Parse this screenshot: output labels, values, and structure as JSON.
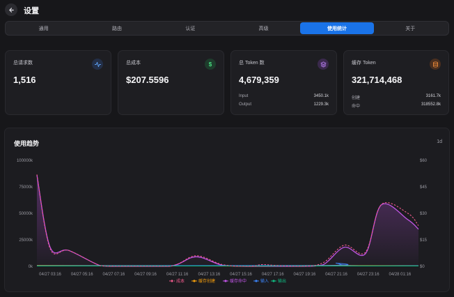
{
  "header": {
    "title": "设置"
  },
  "tabs": [
    {
      "label": "通用",
      "active": false
    },
    {
      "label": "路由",
      "active": false
    },
    {
      "label": "认证",
      "active": false
    },
    {
      "label": "高级",
      "active": false
    },
    {
      "label": "使用统计",
      "active": true
    },
    {
      "label": "关于",
      "active": false
    }
  ],
  "cards": {
    "requests": {
      "label": "总请求数",
      "value": "1,516",
      "icon": "activity-icon",
      "color": "#3b82f6"
    },
    "cost": {
      "label": "总成本",
      "value": "$207.5596",
      "icon": "dollar-icon",
      "color": "#22c55e"
    },
    "tokens": {
      "label": "总 Token 数",
      "value": "4,679,359",
      "icon": "layers-icon",
      "color": "#a855f7",
      "details": [
        {
          "label": "Input",
          "value": "3450.1k"
        },
        {
          "label": "Output",
          "value": "1229.3k"
        }
      ]
    },
    "cache": {
      "label": "缓存 Token",
      "value": "321,714,468",
      "icon": "database-icon",
      "color": "#f97316",
      "details": [
        {
          "label": "创建",
          "value": "3161.7k"
        },
        {
          "label": "命中",
          "value": "318552.8k"
        }
      ]
    }
  },
  "trend": {
    "title": "使用趋势",
    "range": "1d"
  },
  "chart_data": {
    "type": "line",
    "x": [
      "04/27 03:16",
      "04/27 05:16",
      "04/27 07:16",
      "04/27 09:16",
      "04/27 11:16",
      "04/27 13:16",
      "04/27 15:16",
      "04/27 17:16",
      "04/27 19:16",
      "04/27 21:16",
      "04/27 23:16",
      "04/28 01:16"
    ],
    "left_axis": {
      "ticks": [
        "0k",
        "25000k",
        "50000k",
        "75000k",
        "100000k"
      ],
      "ylim": [
        0,
        100000
      ]
    },
    "right_axis": {
      "ticks": [
        "$0",
        "$15",
        "$30",
        "$45",
        "$60"
      ],
      "ylim": [
        0,
        60
      ]
    },
    "grid": false,
    "legend_position": "bottom",
    "series": [
      {
        "name": "成本",
        "axis": "right",
        "color": "#f05a8c",
        "style": "dashed",
        "values": [
          [
            0,
            52
          ],
          [
            0.5,
            10
          ],
          [
            1.2,
            9
          ],
          [
            2.4,
            0.3
          ],
          [
            3,
            0
          ],
          [
            5,
            0
          ],
          [
            6,
            6
          ],
          [
            7,
            1
          ],
          [
            8,
            0
          ],
          [
            8.5,
            1
          ],
          [
            9,
            0.5
          ],
          [
            10,
            0
          ],
          [
            10.8,
            2
          ],
          [
            11.6,
            12
          ],
          [
            12.4,
            8
          ],
          [
            13,
            35
          ],
          [
            14,
            30
          ],
          [
            14.4,
            23
          ]
        ]
      },
      {
        "name": "缓存创建",
        "axis": "left",
        "color": "#f59e0b",
        "style": "solid",
        "values": [
          [
            0,
            600
          ],
          [
            3,
            400
          ],
          [
            6,
            300
          ],
          [
            9,
            300
          ],
          [
            12,
            500
          ],
          [
            14.4,
            400
          ]
        ]
      },
      {
        "name": "缓存命中",
        "axis": "left",
        "color": "#c055e6",
        "style": "solid",
        "values": [
          [
            0,
            86000
          ],
          [
            0.5,
            18000
          ],
          [
            1.2,
            15000
          ],
          [
            2.4,
            500
          ],
          [
            3,
            0
          ],
          [
            5,
            0
          ],
          [
            6,
            9000
          ],
          [
            7,
            1000
          ],
          [
            8,
            0
          ],
          [
            10,
            0
          ],
          [
            10.8,
            1500
          ],
          [
            11.6,
            18000
          ],
          [
            12.4,
            12000
          ],
          [
            13,
            58000
          ],
          [
            14,
            44000
          ],
          [
            14.4,
            35000
          ]
        ]
      },
      {
        "name": "输入",
        "axis": "left",
        "color": "#3b82f6",
        "style": "solid",
        "values": [
          [
            0,
            800
          ],
          [
            10.8,
            800
          ],
          [
            11.3,
            3000
          ],
          [
            11.8,
            800
          ],
          [
            14.4,
            600
          ]
        ]
      },
      {
        "name": "输出",
        "axis": "left",
        "color": "#10b981",
        "style": "solid",
        "values": [
          [
            0,
            300
          ],
          [
            14.4,
            300
          ]
        ]
      }
    ]
  }
}
